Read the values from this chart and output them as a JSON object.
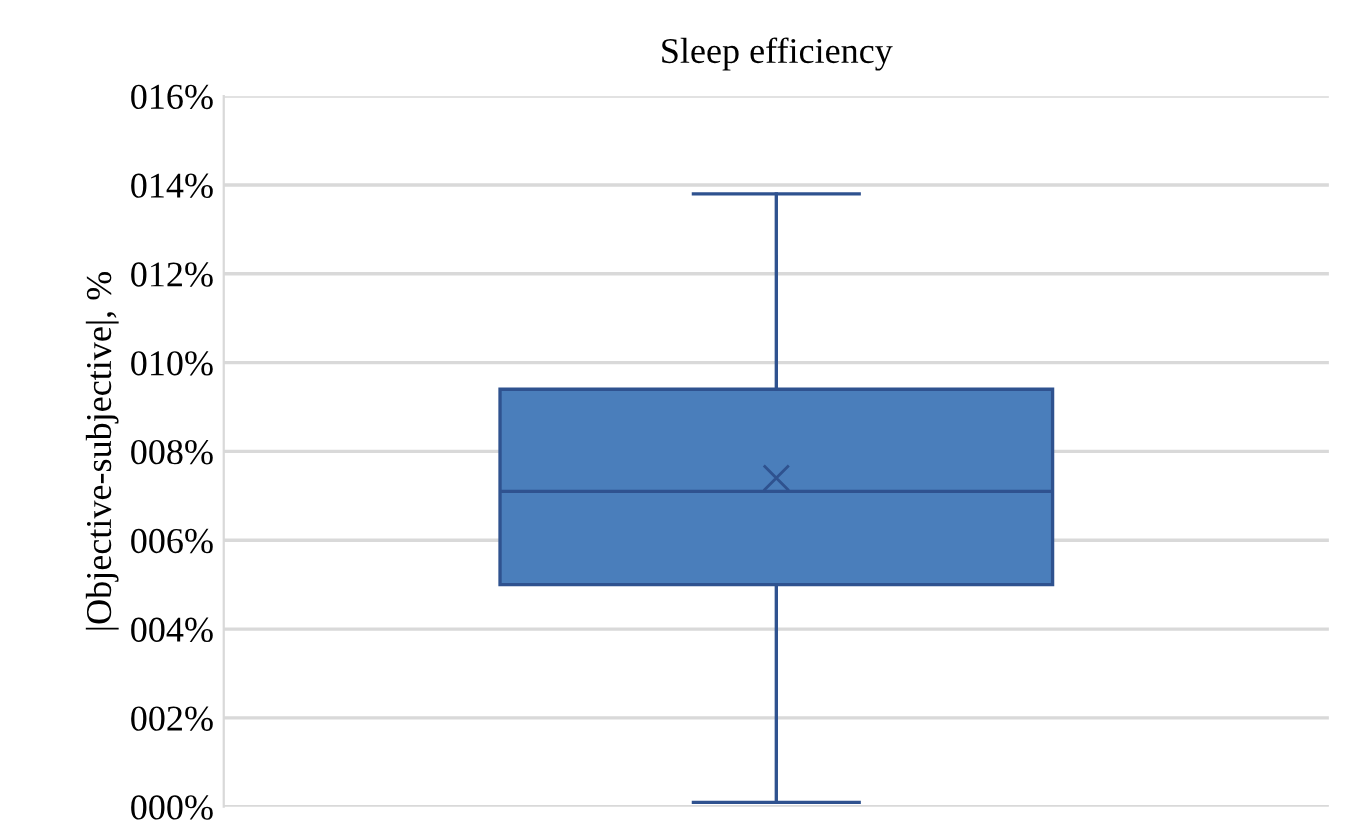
{
  "chart_data": {
    "type": "box",
    "title": "Sleep efficiency",
    "ylabel": "|Objective-subjective|, %",
    "categories": [
      null
    ],
    "series": [
      {
        "color": "#4a7ebb",
        "boxes": [
          {
            "low": 0.1,
            "q1": 5.0,
            "median": 7.1,
            "q3": 9.4,
            "high": 13.8,
            "mean": 7.4
          }
        ]
      }
    ],
    "ylim": [
      0,
      16
    ],
    "yticks": [
      {
        "value": 0,
        "label": "000%"
      },
      {
        "value": 2,
        "label": "002%"
      },
      {
        "value": 4,
        "label": "004%"
      },
      {
        "value": 6,
        "label": "006%"
      },
      {
        "value": 8,
        "label": "008%"
      },
      {
        "value": 10,
        "label": "010%"
      },
      {
        "value": 12,
        "label": "012%"
      },
      {
        "value": 14,
        "label": "014%"
      },
      {
        "value": 16,
        "label": "016%"
      }
    ],
    "grid": "y"
  }
}
